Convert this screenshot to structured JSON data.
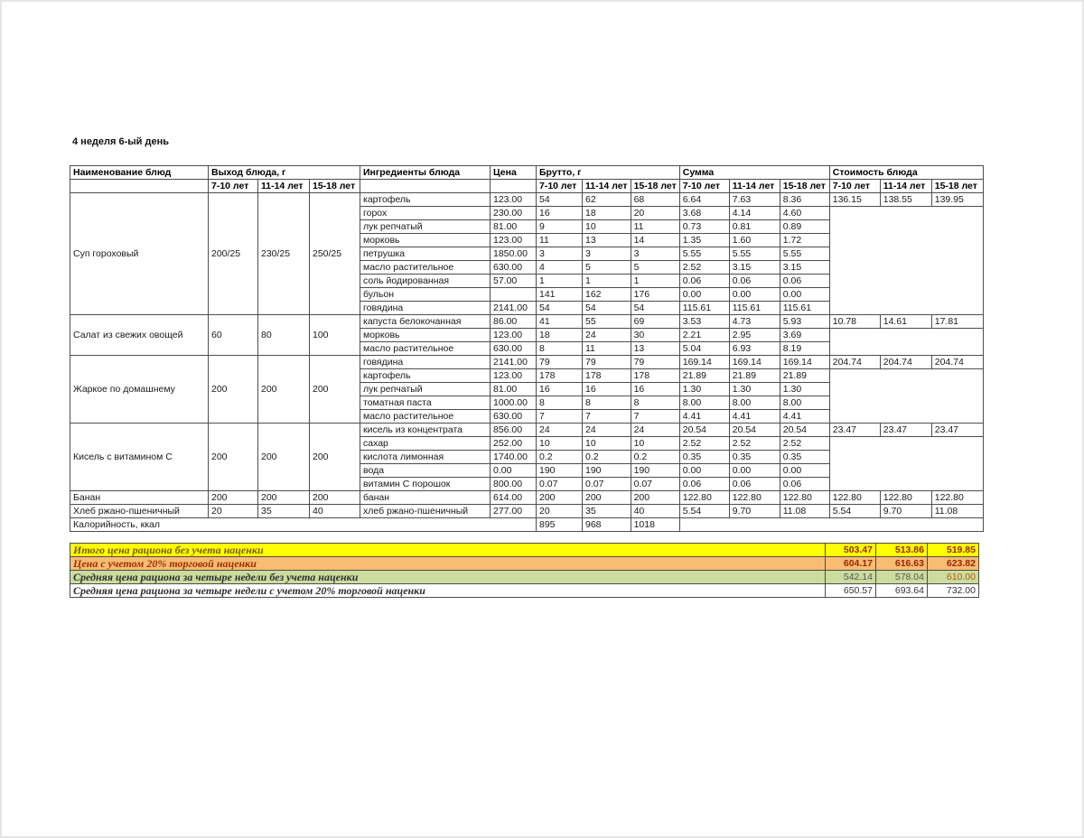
{
  "page": {
    "title": "4 неделя 6-ый день"
  },
  "table": {
    "headers": {
      "name": "Наименование блюд",
      "vyhod": "Выход блюда, г",
      "ingredients": "Ингредиенты блюда",
      "price": "Цена",
      "brutto": "Брутто, г",
      "summa": "Сумма",
      "cost": "Стоимость блюда",
      "ages": [
        "7-10 лет",
        "11-14 лет",
        "15-18 лет"
      ]
    },
    "dishes": [
      {
        "name": "Суп гороховый",
        "vyhod": [
          "200/25",
          "230/25",
          "250/25"
        ],
        "vyhod_align": "center",
        "cost": [
          "136.15",
          "138.55",
          "139.95"
        ],
        "rows": [
          {
            "ingredient": "картофель",
            "price": "123.00",
            "brutto": [
              "54",
              "62",
              "68"
            ],
            "summa": [
              "6.64",
              "7.63",
              "8.36"
            ]
          },
          {
            "ingredient": "горох",
            "price": "230.00",
            "brutto": [
              "16",
              "18",
              "20"
            ],
            "summa": [
              "3.68",
              "4.14",
              "4.60"
            ]
          },
          {
            "ingredient": "лук репчатый",
            "price": "81.00",
            "brutto": [
              "9",
              "10",
              "11"
            ],
            "summa": [
              "0.73",
              "0.81",
              "0.89"
            ]
          },
          {
            "ingredient": "морковь",
            "price": "123.00",
            "brutto": [
              "11",
              "13",
              "14"
            ],
            "summa": [
              "1.35",
              "1.60",
              "1.72"
            ]
          },
          {
            "ingredient": "петрушка",
            "price": "1850.00",
            "brutto": [
              "3",
              "3",
              "3"
            ],
            "summa": [
              "5.55",
              "5.55",
              "5.55"
            ]
          },
          {
            "ingredient": "масло растительное",
            "price": "630.00",
            "brutto": [
              "4",
              "5",
              "5"
            ],
            "summa": [
              "2.52",
              "3.15",
              "3.15"
            ]
          },
          {
            "ingredient": "соль йодированная",
            "price": "57.00",
            "brutto": [
              "1",
              "1",
              "1"
            ],
            "summa": [
              "0.06",
              "0.06",
              "0.06"
            ]
          },
          {
            "ingredient": "бульон",
            "price": "",
            "brutto": [
              "141",
              "162",
              "176"
            ],
            "summa": [
              "0.00",
              "0.00",
              "0.00"
            ]
          },
          {
            "ingredient": "говядина",
            "price": "2141.00",
            "brutto": [
              "54",
              "54",
              "54"
            ],
            "summa": [
              "115.61",
              "115.61",
              "115.61"
            ]
          }
        ]
      },
      {
        "name": "Салат из свежих овощей",
        "vyhod": [
          "60",
          "80",
          "100"
        ],
        "vyhod_align": "center",
        "cost": [
          "10.78",
          "14.61",
          "17.81"
        ],
        "rows": [
          {
            "ingredient": "капуста белокочанная",
            "price": "86.00",
            "brutto": [
              "41",
              "55",
              "69"
            ],
            "summa": [
              "3.53",
              "4.73",
              "5.93"
            ]
          },
          {
            "ingredient": "морковь",
            "price": "123.00",
            "brutto": [
              "18",
              "24",
              "30"
            ],
            "summa": [
              "2.21",
              "2.95",
              "3.69"
            ]
          },
          {
            "ingredient": "масло растительное",
            "price": "630.00",
            "brutto": [
              "8",
              "11",
              "13"
            ],
            "summa": [
              "5.04",
              "6.93",
              "8.19"
            ]
          }
        ]
      },
      {
        "name": "Жаркое по домашнему",
        "vyhod": [
          "200",
          "200",
          "200"
        ],
        "vyhod_align": "center",
        "cost": [
          "204.74",
          "204.74",
          "204.74"
        ],
        "rows": [
          {
            "ingredient": "говядина",
            "price": "2141.00",
            "brutto": [
              "79",
              "79",
              "79"
            ],
            "summa": [
              "169.14",
              "169.14",
              "169.14"
            ]
          },
          {
            "ingredient": "картофель",
            "price": "123.00",
            "brutto": [
              "178",
              "178",
              "178"
            ],
            "summa": [
              "21.89",
              "21.89",
              "21.89"
            ]
          },
          {
            "ingredient": "лук репчатый",
            "price": "81.00",
            "brutto": [
              "16",
              "16",
              "16"
            ],
            "summa": [
              "1.30",
              "1.30",
              "1.30"
            ]
          },
          {
            "ingredient": "томатная паста",
            "price": "1000.00",
            "brutto": [
              "8",
              "8",
              "8"
            ],
            "summa": [
              "8.00",
              "8.00",
              "8.00"
            ]
          },
          {
            "ingredient": "масло растительное",
            "price": "630.00",
            "brutto": [
              "7",
              "7",
              "7"
            ],
            "summa": [
              "4.41",
              "4.41",
              "4.41"
            ]
          }
        ]
      },
      {
        "name": "Кисель с витамином С",
        "vyhod": [
          "200",
          "200",
          "200"
        ],
        "vyhod_align": "center",
        "cost": [
          "23.47",
          "23.47",
          "23.47"
        ],
        "rows": [
          {
            "ingredient": "кисель из концентрата",
            "price": "856.00",
            "brutto": [
              "24",
              "24",
              "24"
            ],
            "summa": [
              "20.54",
              "20.54",
              "20.54"
            ]
          },
          {
            "ingredient": "сахар",
            "price": "252.00",
            "brutto": [
              "10",
              "10",
              "10"
            ],
            "summa": [
              "2.52",
              "2.52",
              "2.52"
            ]
          },
          {
            "ingredient": "кислота лимонная",
            "price": "1740.00",
            "brutto": [
              "0.2",
              "0.2",
              "0.2"
            ],
            "summa": [
              "0.35",
              "0.35",
              "0.35"
            ]
          },
          {
            "ingredient": "вода",
            "price": "0.00",
            "brutto": [
              "190",
              "190",
              "190"
            ],
            "summa": [
              "0.00",
              "0.00",
              "0.00"
            ]
          },
          {
            "ingredient": "витамин С порошок",
            "price": "800.00",
            "brutto": [
              "0.07",
              "0.07",
              "0.07"
            ],
            "summa": [
              "0.06",
              "0.06",
              "0.06"
            ]
          }
        ]
      },
      {
        "name": "Банан",
        "vyhod": [
          "200",
          "200",
          "200"
        ],
        "vyhod_align": "left",
        "cost": [
          "122.80",
          "122.80",
          "122.80"
        ],
        "rows": [
          {
            "ingredient": "банан",
            "price": "614.00",
            "brutto": [
              "200",
              "200",
              "200"
            ],
            "summa": [
              "122.80",
              "122.80",
              "122.80"
            ]
          }
        ]
      },
      {
        "name": "Хлеб ржано-пшеничный",
        "vyhod": [
          "20",
          "35",
          "40"
        ],
        "vyhod_align": "left",
        "cost": [
          "5.54",
          "9.70",
          "11.08"
        ],
        "rows": [
          {
            "ingredient": "хлеб ржано-пшеничный",
            "price": "277.00",
            "brutto": [
              "20",
              "35",
              "40"
            ],
            "summa": [
              "5.54",
              "9.70",
              "11.08"
            ]
          }
        ]
      }
    ],
    "kcal_row": {
      "label": "Калорийность, ккал",
      "values": [
        "895",
        "968",
        "1018"
      ]
    }
  },
  "summary": {
    "rows": [
      {
        "label": "Итого цена рациона без учета наценки",
        "values": [
          "503.47",
          "513.86",
          "519.85"
        ],
        "bg": "#ffff00",
        "label_color": "#7b5a00",
        "value_colors": [
          "#9c2505",
          "#9c2505",
          "#9c2505"
        ],
        "values_bold": true
      },
      {
        "label": "Цена с учетом 20% торговой наценки",
        "values": [
          "604.17",
          "616.63",
          "623.82"
        ],
        "bg": "#f8bc72",
        "label_color": "#9c3000",
        "value_colors": [
          "#9c2505",
          "#9c2505",
          "#9c2505"
        ],
        "values_bold": true
      },
      {
        "label": "Средняя цена рациона за четыре недели без учета наценки",
        "values": [
          "542.14",
          "578.04",
          "610.00"
        ],
        "bg": "#ccdb9e",
        "label_color": "#2f2f2f",
        "value_colors": [
          "#575757",
          "#575757",
          "#b05d0b"
        ],
        "values_bold": false
      },
      {
        "label": "Средняя цена рациона за четыре недели с учетом 20% торговой наценки",
        "values": [
          "650.57",
          "693.64",
          "732.00"
        ],
        "bg": "#ffffff",
        "label_color": "#2f2f2f",
        "value_colors": [
          "#333333",
          "#333333",
          "#333333"
        ],
        "values_bold": false
      }
    ]
  },
  "colors": {
    "grid_border": "#4d4d4d",
    "summary_yellow": "#ffff00",
    "summary_orange": "#f8bc72",
    "summary_green": "#ccdb9e",
    "summary_value_red": "#9c2505"
  }
}
